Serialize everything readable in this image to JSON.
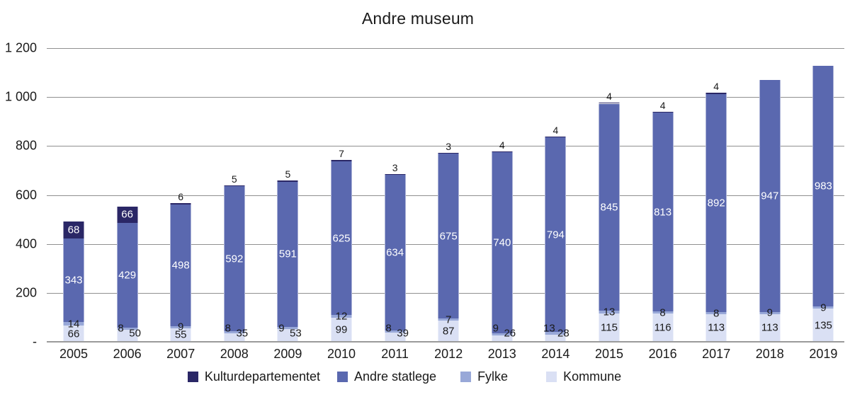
{
  "chart_data": {
    "type": "bar",
    "stacked": true,
    "title": "Andre museum",
    "categories": [
      "2005",
      "2006",
      "2007",
      "2008",
      "2009",
      "2010",
      "2011",
      "2012",
      "2013",
      "2014",
      "2015",
      "2016",
      "2017",
      "2018",
      "2019"
    ],
    "series": [
      {
        "name": "Kulturdepartementet",
        "color": "#2a2766",
        "values": [
          68,
          66,
          6,
          5,
          5,
          7,
          3,
          3,
          4,
          4,
          4,
          4,
          4,
          null,
          null
        ]
      },
      {
        "name": "Andre statlege",
        "color": "#5a68af",
        "values": [
          343,
          429,
          498,
          592,
          591,
          625,
          634,
          675,
          740,
          794,
          845,
          813,
          892,
          947,
          983
        ]
      },
      {
        "name": "Fylke",
        "color": "#98a8d8",
        "values": [
          14,
          8,
          9,
          8,
          9,
          12,
          8,
          7,
          9,
          13,
          13,
          8,
          8,
          9,
          9
        ]
      },
      {
        "name": "Kommune",
        "color": "#dae0f4",
        "values": [
          66,
          50,
          55,
          35,
          53,
          99,
          39,
          87,
          26,
          28,
          115,
          116,
          113,
          113,
          135
        ]
      }
    ],
    "y_axis": {
      "max": 1200,
      "tick_interval": 200,
      "tick_labels": [
        "-",
        "200",
        "400",
        "600",
        "800",
        "1 000",
        "1 200"
      ],
      "gridlines": true
    },
    "legend_position": "bottom",
    "label_colors": {
      "inside_dark": "#ffffff",
      "outside": "#1a1a1a"
    },
    "gridline_color": "#909090"
  }
}
